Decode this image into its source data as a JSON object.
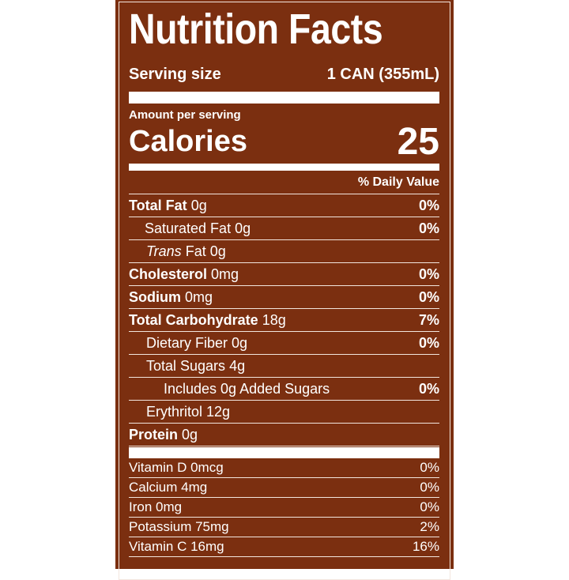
{
  "title": "Nutrition Facts",
  "serving": {
    "label": "Serving size",
    "value": "1 CAN (355mL)"
  },
  "calories": {
    "amount_label": "Amount per serving",
    "label": "Calories",
    "value": "25"
  },
  "daily_value_header": "% Daily Value",
  "nutrients": [
    {
      "name": "Total Fat",
      "amount": "0g",
      "dv": "0%"
    },
    {
      "name": "Saturated Fat",
      "amount": "0g",
      "dv": "0%"
    },
    {
      "name": "Trans",
      "amount": "Fat 0g"
    },
    {
      "name": "Cholesterol",
      "amount": "0mg",
      "dv": "0%"
    },
    {
      "name": "Sodium",
      "amount": "0mg",
      "dv": "0%"
    },
    {
      "name": "Total Carbohydrate",
      "amount": "18g",
      "dv": "7%"
    },
    {
      "name": "Dietary Fiber",
      "amount": "0g",
      "dv": "0%"
    },
    {
      "name": "Total Sugars",
      "amount": "4g"
    },
    {
      "name": "Includes 0g Added Sugars",
      "dv": "0%"
    },
    {
      "name": "Erythritol",
      "amount": "12g"
    },
    {
      "name": "Protein",
      "amount": "0g"
    }
  ],
  "vitamins": [
    {
      "label": "Vitamin D 0mcg",
      "dv": "0%"
    },
    {
      "label": "Calcium 4mg",
      "dv": "0%"
    },
    {
      "label": "Iron 0mg",
      "dv": "0%"
    },
    {
      "label": "Potassium 75mg",
      "dv": "2%"
    },
    {
      "label": "Vitamin C 16mg",
      "dv": "16%"
    }
  ]
}
